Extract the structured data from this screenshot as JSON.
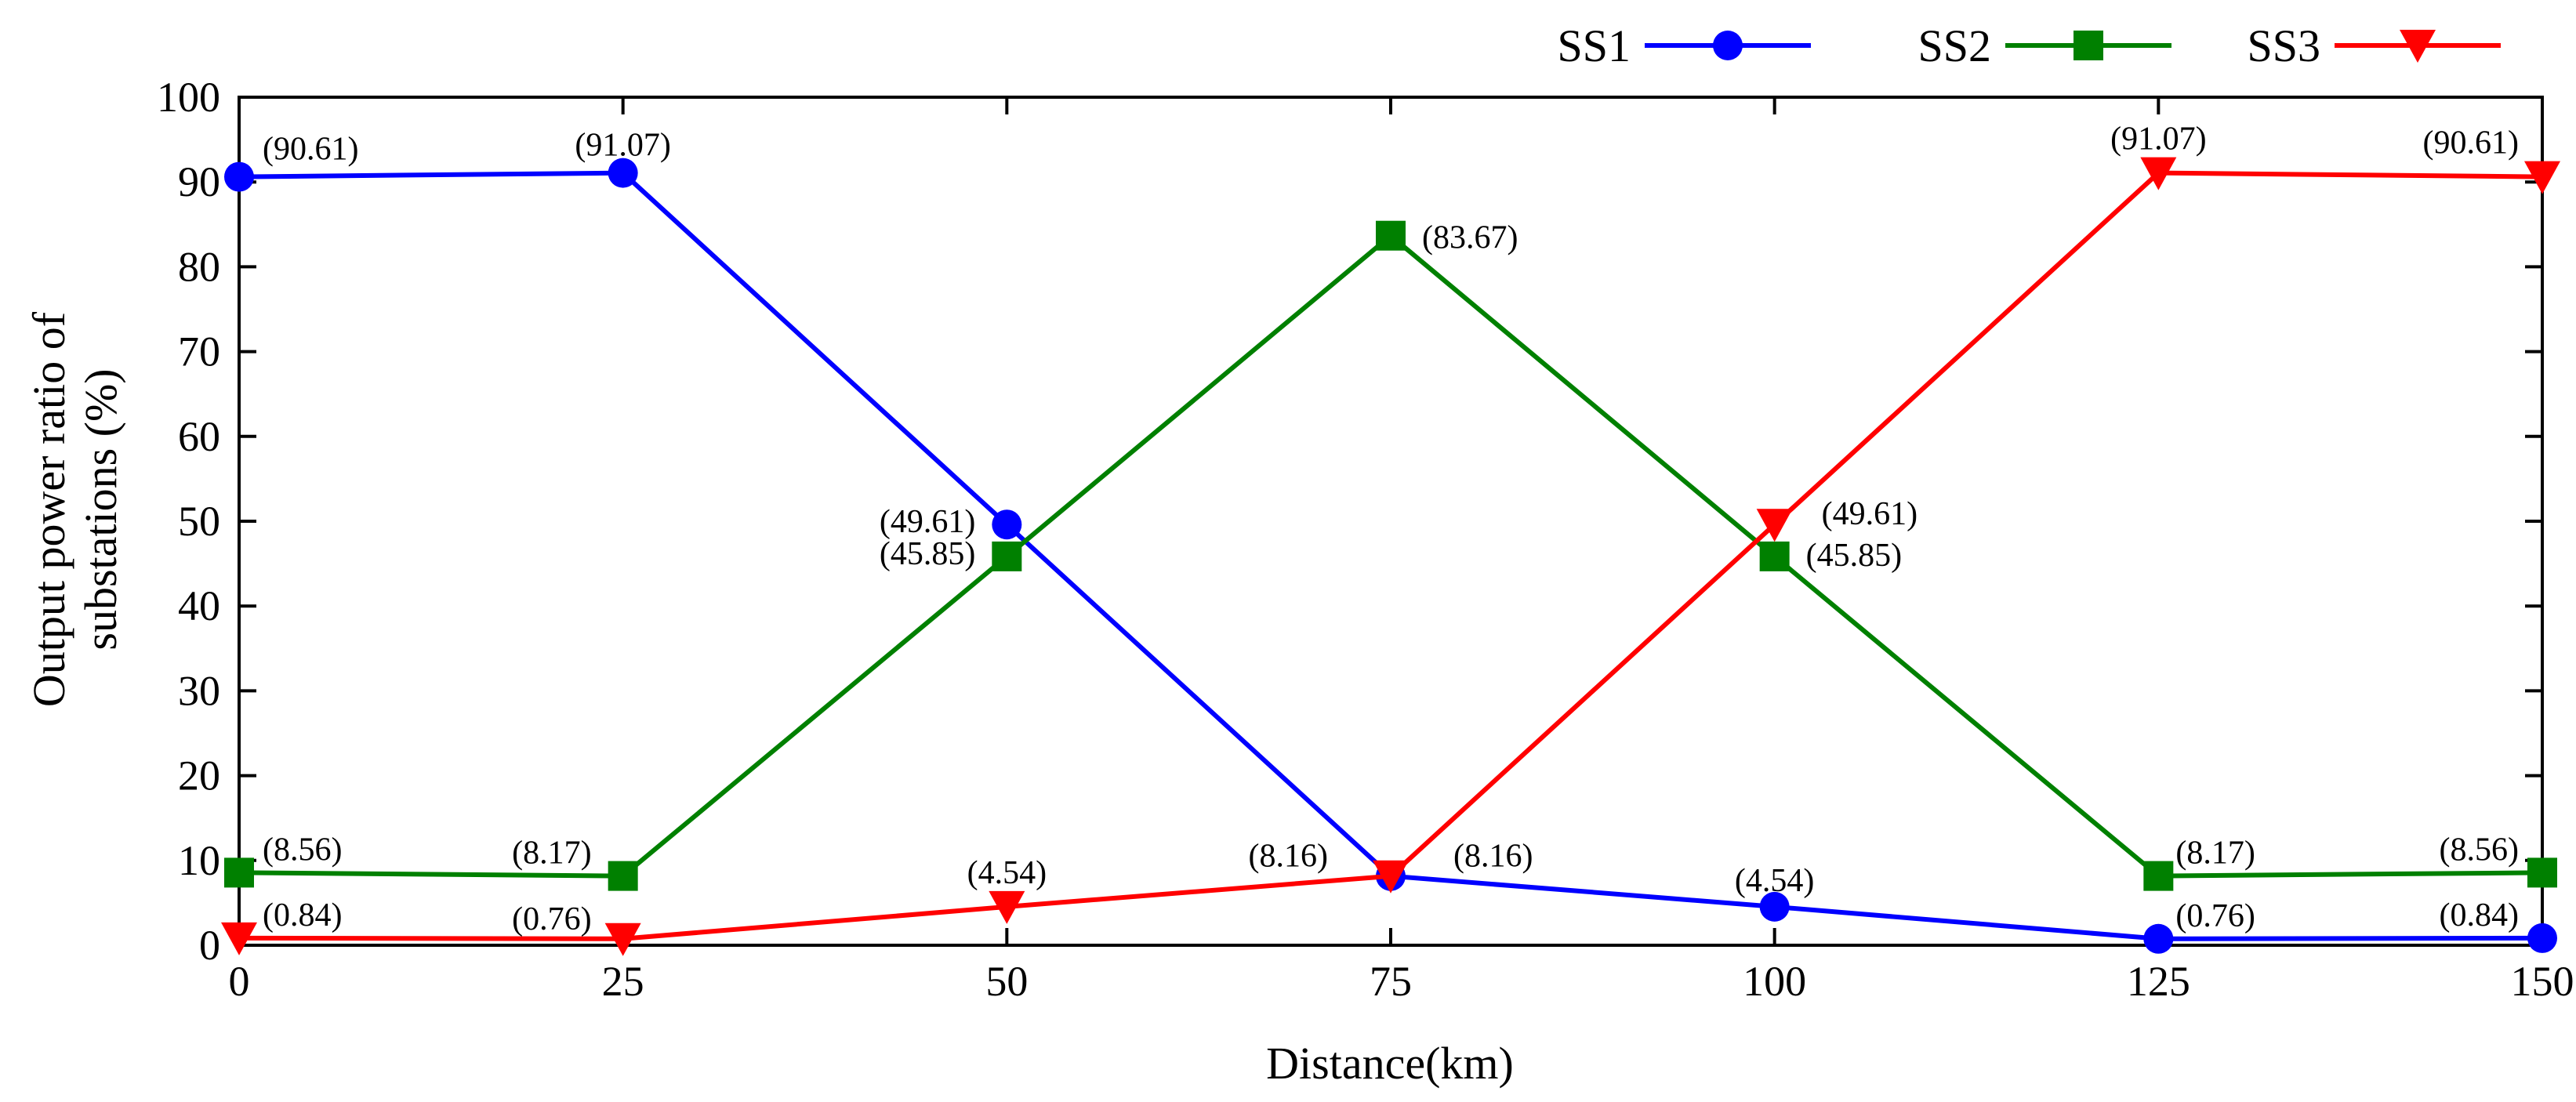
{
  "chart_data": {
    "type": "line",
    "title": "",
    "xlabel": "Distance(km)",
    "ylabel_lines": [
      "Output power ratio of",
      "substations (%)"
    ],
    "x": [
      0,
      25,
      50,
      75,
      100,
      125,
      150
    ],
    "xlim": [
      0,
      150
    ],
    "ylim": [
      0,
      100
    ],
    "xticks": [
      "0",
      "25",
      "50",
      "75",
      "100",
      "125",
      "150"
    ],
    "yticks": [
      "0",
      "10",
      "20",
      "30",
      "40",
      "50",
      "60",
      "70",
      "80",
      "90",
      "100"
    ],
    "grid": false,
    "legend": "top-right",
    "series": [
      {
        "name": "SS1",
        "color": "#0000ff",
        "marker": "circle",
        "values": [
          90.61,
          91.07,
          49.61,
          8.16,
          4.54,
          0.76,
          0.84
        ],
        "labels": [
          "(90.61)",
          "(91.07)",
          "(49.61)",
          "(8.16)",
          "(4.54)",
          "(0.76)",
          "(0.84)"
        ]
      },
      {
        "name": "SS2",
        "color": "#008000",
        "marker": "square",
        "values": [
          8.56,
          8.17,
          45.85,
          83.67,
          45.85,
          8.17,
          8.56
        ],
        "labels": [
          "(8.56)",
          "(8.17)",
          "(45.85)",
          "(83.67)",
          "(45.85)",
          "(8.17)",
          "(8.56)"
        ]
      },
      {
        "name": "SS3",
        "color": "#ff0000",
        "marker": "triangle-down",
        "values": [
          0.84,
          0.76,
          4.54,
          8.16,
          49.61,
          91.07,
          90.61
        ],
        "labels": [
          "(0.84)",
          "(0.76)",
          "(4.54)",
          "(8.16)",
          "(49.61)",
          "(91.07)",
          "(90.61)"
        ]
      }
    ]
  }
}
